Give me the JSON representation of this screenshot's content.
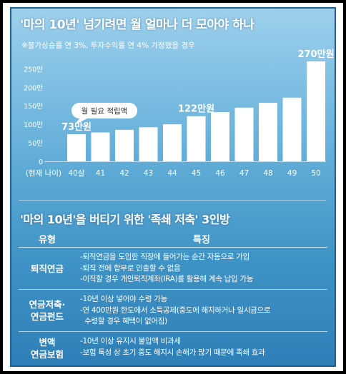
{
  "title": "'마의 10년' 넘기려면 월 얼마나 더 모아야 하나",
  "subtitle": "※물가상승률 연 3%, 투자수익률 연 4% 가정했을 경우",
  "chart_data": {
    "type": "bar",
    "x_axis_label": "(현재 나이)",
    "categories": [
      "40살",
      "41",
      "42",
      "43",
      "44",
      "45",
      "46",
      "47",
      "48",
      "49",
      "50"
    ],
    "values": [
      73,
      78,
      85,
      92,
      100,
      122,
      133,
      145,
      158,
      172,
      270
    ],
    "unit": "만원",
    "y_ticks": [
      "0",
      "50만",
      "100만",
      "150만",
      "200만",
      "250만"
    ],
    "ylim": [
      0,
      270
    ],
    "bar_color": "#ffffff",
    "labels": [
      {
        "index": 0,
        "text": "73만원"
      },
      {
        "index": 5,
        "text": "122만원"
      },
      {
        "index": 10,
        "text": "270만원"
      }
    ],
    "callout": "월 필요 적립액"
  },
  "section2_title": "'마의 10년'을 버티기 위한 '족쇄 저축' 3인방",
  "table": {
    "headers": [
      "유형",
      "특징"
    ],
    "rows": [
      {
        "type": [
          "퇴직연금"
        ],
        "features": [
          "-퇴직연금을 도입한 직장에 들어가는 순간 자동으로 가입",
          "-퇴직 전에 함부로 인출할 수 없음",
          "-이직할 경우 개인퇴직계좌(IRA)를 활용해 계속 납입 가능"
        ]
      },
      {
        "type": [
          "연금저축·",
          "연금펀드"
        ],
        "features": [
          "-10년 이상 넣어야 수령 가능",
          "-연 400만원 한도에서 소득공제(중도에 해지하거나 일시금으로",
          "  수령할 경우 혜택이 없어짐)"
        ]
      },
      {
        "type": [
          "변액",
          "연금보험"
        ],
        "features": [
          "-10년 이상 유지시 불입액 비과세",
          "-보험 특성 상 초기 중도 해지시 손해가 많기 때문에 족쇄 효과"
        ]
      }
    ]
  }
}
